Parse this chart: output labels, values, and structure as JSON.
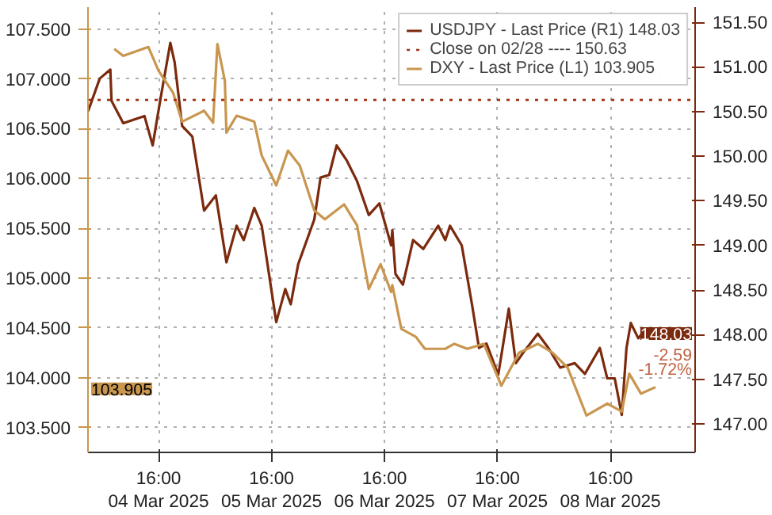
{
  "chart_data": {
    "type": "line",
    "xlim": [
      "2025-03-04T01:00",
      "2025-03-09T10:00"
    ],
    "xticks": [
      {
        "value": "2025-03-04T16:00",
        "label": "16:00\n04 Mar 2025"
      },
      {
        "value": "2025-03-05T16:00",
        "label": "16:00\n05 Mar 2025"
      },
      {
        "value": "2025-03-06T16:00",
        "label": "16:00\n06 Mar 2025"
      },
      {
        "value": "2025-03-07T16:00",
        "label": "16:00\n07 Mar 2025"
      },
      {
        "value": "2025-03-08T16:00",
        "label": "16:00\n08 Mar 2025"
      }
    ],
    "ylim": [
      103.25,
      107.72
    ],
    "yticks": [
      {
        "value": 103.5,
        "label": "103.500"
      },
      {
        "value": 104,
        "label": "104.000"
      },
      {
        "value": 104.5,
        "label": "104.500"
      },
      {
        "value": 105,
        "label": "105.000"
      },
      {
        "value": 105.5,
        "label": "105.500"
      },
      {
        "value": 106,
        "label": "106.000"
      },
      {
        "value": 106.5,
        "label": "106.500"
      },
      {
        "value": 107,
        "label": "107.000"
      },
      {
        "value": 107.5,
        "label": "107.500"
      }
    ],
    "y2lim": [
      146.68,
      151.67
    ],
    "y2ticks": [
      {
        "value": 147,
        "label": "147.00"
      },
      {
        "value": 147.5,
        "label": "147.50"
      },
      {
        "value": 148,
        "label": "148.00"
      },
      {
        "value": 148.5,
        "label": "148.50"
      },
      {
        "value": 149,
        "label": "149.00"
      },
      {
        "value": 149.5,
        "label": "149.50"
      },
      {
        "value": 150,
        "label": "150.00"
      },
      {
        "value": 150.5,
        "label": "150.50"
      },
      {
        "value": 151,
        "label": "151.00"
      },
      {
        "value": 151.5,
        "label": "151.50"
      }
    ],
    "grid": true,
    "legend": "top right",
    "series": [
      {
        "name": "USDJPY - Last Price (R1) 148.03",
        "color": "#7b2a0e",
        "axis": "y2",
        "x": [
          "2025-03-04T01:00",
          "2025-03-04T03:30",
          "2025-03-04T05:45",
          "2025-03-04T06:00",
          "2025-03-04T08:30",
          "2025-03-04T13:00",
          "2025-03-04T14:45",
          "2025-03-04T16:20",
          "2025-03-04T18:30",
          "2025-03-04T19:25",
          "2025-03-04T21:00",
          "2025-03-04T23:10",
          "2025-03-05T01:40",
          "2025-03-05T04:10",
          "2025-03-05T06:25",
          "2025-03-05T08:35",
          "2025-03-05T10:05",
          "2025-03-05T12:20",
          "2025-03-05T13:55",
          "2025-03-05T17:00",
          "2025-03-05T18:55",
          "2025-03-05T20:05",
          "2025-03-05T21:40",
          "2025-03-06T01:05",
          "2025-03-06T02:25",
          "2025-03-06T04:15",
          "2025-03-06T05:50",
          "2025-03-06T08:00",
          "2025-03-06T10:10",
          "2025-03-06T12:40",
          "2025-03-06T14:55",
          "2025-03-06T17:25",
          "2025-03-06T17:40",
          "2025-03-06T18:20",
          "2025-03-06T19:55",
          "2025-03-06T22:05",
          "2025-03-07T00:15",
          "2025-03-07T03:25",
          "2025-03-07T04:55",
          "2025-03-07T05:55",
          "2025-03-07T08:25",
          "2025-03-07T10:35",
          "2025-03-07T12:05",
          "2025-03-07T13:40",
          "2025-03-07T16:10",
          "2025-03-07T18:25",
          "2025-03-07T19:55",
          "2025-03-07T21:30",
          "2025-03-08T00:35",
          "2025-03-08T02:50",
          "2025-03-08T05:20",
          "2025-03-08T08:25",
          "2025-03-08T10:35",
          "2025-03-08T13:45",
          "2025-03-08T15:20",
          "2025-03-08T16:55",
          "2025-03-08T18:25",
          "2025-03-08T19:25",
          "2025-03-08T20:20",
          "2025-03-08T21:55",
          "2025-03-08T23:05"
        ],
        "values": [
          150.5,
          150.87,
          150.97,
          150.62,
          150.37,
          150.45,
          150.12,
          150.62,
          151.27,
          151.05,
          150.34,
          150.22,
          149.39,
          149.56,
          148.81,
          149.22,
          149.06,
          149.42,
          149.22,
          148.14,
          148.51,
          148.34,
          148.79,
          149.29,
          149.76,
          149.79,
          150.12,
          149.95,
          149.72,
          149.34,
          149.47,
          149.0,
          149.17,
          148.68,
          148.56,
          149.06,
          148.96,
          149.22,
          149.06,
          149.22,
          149.0,
          148.34,
          147.85,
          147.9,
          147.55,
          148.29,
          147.68,
          147.8,
          148.01,
          147.85,
          147.63,
          147.68,
          147.56,
          147.85,
          147.51,
          147.51,
          147.1,
          147.85,
          148.13,
          147.96,
          148.03
        ]
      },
      {
        "name": "DXY - Last Price (L1) 103.905",
        "color": "#c8964f",
        "x": [
          "2025-03-04T06:35",
          "2025-03-04T08:30",
          "2025-03-04T13:50",
          "2025-03-04T16:00",
          "2025-03-04T19:05",
          "2025-03-04T21:00",
          "2025-03-05T01:40",
          "2025-03-05T03:35",
          "2025-03-05T04:30",
          "2025-03-05T06:05",
          "2025-03-05T06:25",
          "2025-03-05T08:35",
          "2025-03-05T12:20",
          "2025-03-05T13:55",
          "2025-03-05T17:00",
          "2025-03-05T19:30",
          "2025-03-05T22:00",
          "2025-03-06T01:05",
          "2025-03-06T03:20",
          "2025-03-06T07:25",
          "2025-03-06T10:10",
          "2025-03-06T12:40",
          "2025-03-06T15:10",
          "2025-03-06T17:25",
          "2025-03-06T17:40",
          "2025-03-06T19:35",
          "2025-03-06T22:40",
          "2025-03-07T00:35",
          "2025-03-07T04:55",
          "2025-03-07T06:50",
          "2025-03-07T09:35",
          "2025-03-07T13:05",
          "2025-03-07T16:50",
          "2025-03-07T20:35",
          "2025-03-08T00:35",
          "2025-03-08T03:45",
          "2025-03-08T06:55",
          "2025-03-08T10:55",
          "2025-03-08T15:20",
          "2025-03-08T18:25",
          "2025-03-08T20:00",
          "2025-03-08T22:30",
          "2025-03-09T01:35"
        ],
        "values": [
          107.3,
          107.23,
          107.32,
          107.08,
          106.86,
          106.57,
          106.68,
          106.56,
          107.35,
          106.98,
          106.46,
          106.63,
          106.57,
          106.23,
          105.93,
          106.28,
          106.13,
          105.68,
          105.59,
          105.74,
          105.53,
          104.89,
          105.14,
          104.86,
          104.93,
          104.49,
          104.41,
          104.29,
          104.29,
          104.34,
          104.29,
          104.34,
          103.92,
          104.25,
          104.34,
          104.25,
          104.1,
          103.62,
          103.74,
          103.66,
          104.04,
          103.84,
          103.905
        ]
      }
    ],
    "ref_lines": [
      {
        "axis": "y2",
        "value": 150.63,
        "label": "Close on 02/28 ---- 150.63",
        "color": "#a03010",
        "line_style": "dotted"
      }
    ],
    "annotations": [
      "148.03",
      "103.905",
      "-2.59",
      "-1.72%"
    ]
  }
}
